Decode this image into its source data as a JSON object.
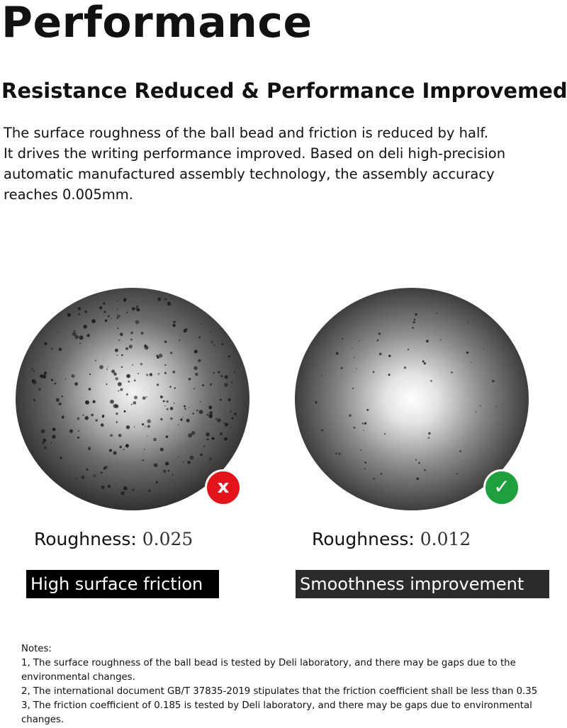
{
  "header": {
    "title": "Performance",
    "subtitle": "Resistance Reduced & Performance Improvemed"
  },
  "description": {
    "lines": [
      "The surface roughness of the ball bead and friction is reduced by half.",
      "It drives the writing performance improved. Based on deli high-precision",
      "automatic manufactured assembly technology, the assembly accuracy",
      "reaches 0.005mm."
    ]
  },
  "comparison": {
    "left": {
      "roughness_label": "Roughness:",
      "roughness_value": "0.025",
      "tag": "High surface friction",
      "badge_icon": "x-icon",
      "badge_glyph": "x",
      "badge_color": "#e3141b"
    },
    "right": {
      "roughness_label": "Roughness:",
      "roughness_value": "0.012",
      "tag": "Smoothness improvement",
      "badge_icon": "check-icon",
      "badge_glyph": "✓",
      "badge_color": "#1ea03c"
    }
  },
  "notes": {
    "heading": "Notes:",
    "lines": [
      "1, The surface roughness of the ball bead is tested by Deli laboratory, and there may be gaps due to the",
      "environmental changes.",
      "2, The international document GB/T 37835-2019 stipulates that the friction coefficient shall be less than 0.35",
      "3, The friction coefficient of 0.185 is tested by Deli laboratory, and there may be gaps due to environmental",
      "changes."
    ]
  }
}
